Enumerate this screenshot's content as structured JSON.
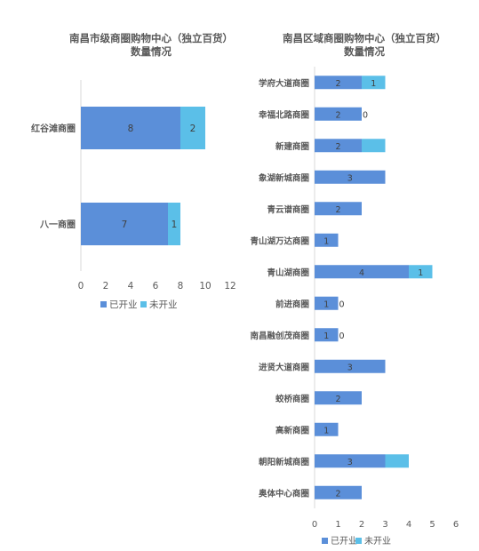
{
  "colors": {
    "opened": "#5B8FD9",
    "unopened": "#5BBFE8",
    "axis": "#D9D9D9",
    "text": "#595959"
  },
  "chart_data": [
    {
      "type": "bar",
      "orientation": "horizontal",
      "stacked": true,
      "title_line1": "南昌市级商圈购物中心（独立百货）",
      "title_line2": "数量情况",
      "categories": [
        "红谷滩商圈",
        "八一商圈"
      ],
      "series": [
        {
          "name": "已开业",
          "values": [
            8,
            7
          ]
        },
        {
          "name": "未开业",
          "values": [
            2,
            1
          ]
        }
      ],
      "xlim": [
        0,
        12
      ],
      "xticks": [
        0,
        2,
        4,
        6,
        8,
        10,
        12
      ],
      "grid": false,
      "legend_position": "bottom"
    },
    {
      "type": "bar",
      "orientation": "horizontal",
      "stacked": true,
      "title_line1": "南昌区域商圈购物中心（独立百货）",
      "title_line2": "数量情况",
      "categories": [
        "学府大道商圈",
        "幸福北路商圈",
        "新建商圈",
        "象湖新城商圈",
        "青云谱商圈",
        "青山湖万达商圈",
        "青山湖商圈",
        "前进商圈",
        "南昌融创茂商圈",
        "进贤大道商圈",
        "蛟桥商圈",
        "高新商圈",
        "朝阳新城商圈",
        "奥体中心商圈"
      ],
      "series": [
        {
          "name": "已开业",
          "values": [
            2,
            2,
            2,
            3,
            2,
            1,
            4,
            1,
            1,
            3,
            2,
            1,
            3,
            2
          ]
        },
        {
          "name": "未开业",
          "values": [
            1,
            0,
            1,
            null,
            null,
            null,
            1,
            0,
            0,
            null,
            null,
            null,
            1,
            null
          ]
        }
      ],
      "data_labels": {
        "已开业": [
          "2",
          "2",
          "2",
          "3",
          "2",
          "1",
          "4",
          "1",
          "1",
          "3",
          "2",
          "1",
          "3",
          "2"
        ],
        "未开业": [
          "1",
          "0",
          "",
          "",
          "",
          "",
          "1",
          "0",
          "0",
          "",
          "",
          "",
          "",
          ""
        ]
      },
      "xlim": [
        0,
        6
      ],
      "xticks": [
        0,
        1,
        2,
        3,
        4,
        5,
        6
      ],
      "grid": false,
      "legend_position": "bottom"
    }
  ]
}
